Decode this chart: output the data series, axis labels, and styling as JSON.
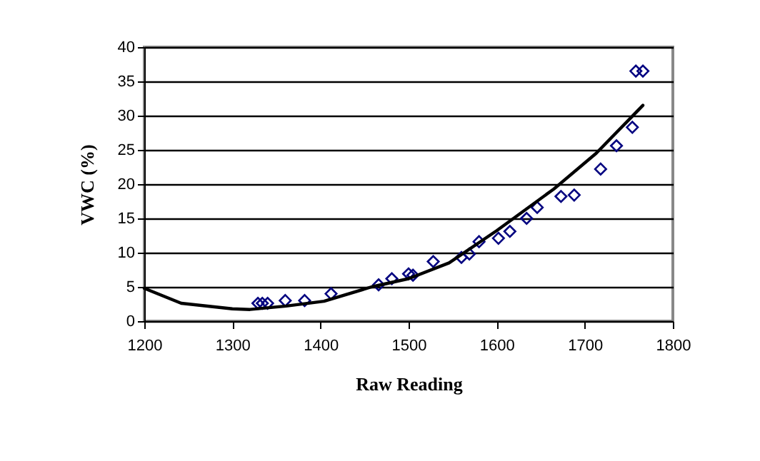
{
  "chart_data": {
    "type": "scatter",
    "xlabel": "Raw Reading",
    "ylabel": "VWC (%)",
    "xlim": [
      1200,
      1800
    ],
    "ylim": [
      0,
      40
    ],
    "xticks": [
      1200,
      1300,
      1400,
      1500,
      1600,
      1700,
      1800
    ],
    "yticks": [
      0,
      5,
      10,
      15,
      20,
      25,
      30,
      35,
      40
    ],
    "grid": "y",
    "series": [
      {
        "marker": "diamond",
        "color": "#000080",
        "x": [
          1329,
          1334,
          1340,
          1360,
          1382,
          1412,
          1466,
          1481,
          1500,
          1505,
          1528,
          1560,
          1569,
          1580,
          1602,
          1615,
          1634,
          1646,
          1673,
          1688,
          1718,
          1736,
          1754,
          1758,
          1766
        ],
        "values": [
          2.6,
          2.6,
          2.6,
          3.0,
          3.0,
          4.0,
          5.3,
          6.2,
          6.9,
          6.7,
          8.7,
          9.3,
          9.8,
          11.6,
          12.1,
          13.1,
          15.0,
          16.6,
          18.2,
          18.4,
          22.2,
          25.6,
          28.3,
          36.5,
          36.5
        ]
      },
      {
        "type": "line",
        "marker": "none",
        "color": "#000000",
        "x": [
          1200,
          1242,
          1300,
          1320,
          1361,
          1404,
          1458,
          1500,
          1546,
          1600,
          1665,
          1713,
          1766
        ],
        "values": [
          4.8,
          2.6,
          1.8,
          1.7,
          2.2,
          2.9,
          5.0,
          6.2,
          8.5,
          13.2,
          19.3,
          24.5,
          31.5
        ]
      }
    ]
  }
}
